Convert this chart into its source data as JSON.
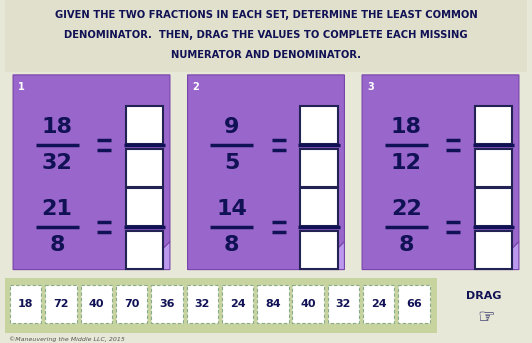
{
  "bg_color": "#e8e8d8",
  "title_lines": [
    "GIVEN THE TWO FRACTIONS IN EACH SET, DETERMINE THE LEAST COMMON",
    "DENOMINATOR.  THEN, DRAG THE VALUES TO COMPLETE EACH MISSING",
    "NUMERATOR AND DENOMINATOR."
  ],
  "title_fontsize": 7.2,
  "title_color": "#111155",
  "card_color": "#9966cc",
  "card_fold_color": "#bb99ee",
  "card_border_color": "#7744aa",
  "box_color": "#ffffff",
  "box_border": "#222255",
  "cards": [
    {
      "label": "1",
      "fractions": [
        {
          "num": "18",
          "den": "32"
        },
        {
          "num": "21",
          "den": "8"
        }
      ]
    },
    {
      "label": "2",
      "fractions": [
        {
          "num": "9",
          "den": "5"
        },
        {
          "num": "14",
          "den": "8"
        }
      ]
    },
    {
      "label": "3",
      "fractions": [
        {
          "num": "18",
          "den": "12"
        },
        {
          "num": "22",
          "den": "8"
        }
      ]
    }
  ],
  "drag_values": [
    "18",
    "72",
    "40",
    "70",
    "36",
    "32",
    "24",
    "84",
    "40",
    "32",
    "24",
    "66"
  ],
  "drag_bg": "#c8d4a0",
  "drag_box_color": "#ffffff",
  "drag_box_border": "#88aa88",
  "copyright": "©Maneuvering the Middle LLC, 2015"
}
